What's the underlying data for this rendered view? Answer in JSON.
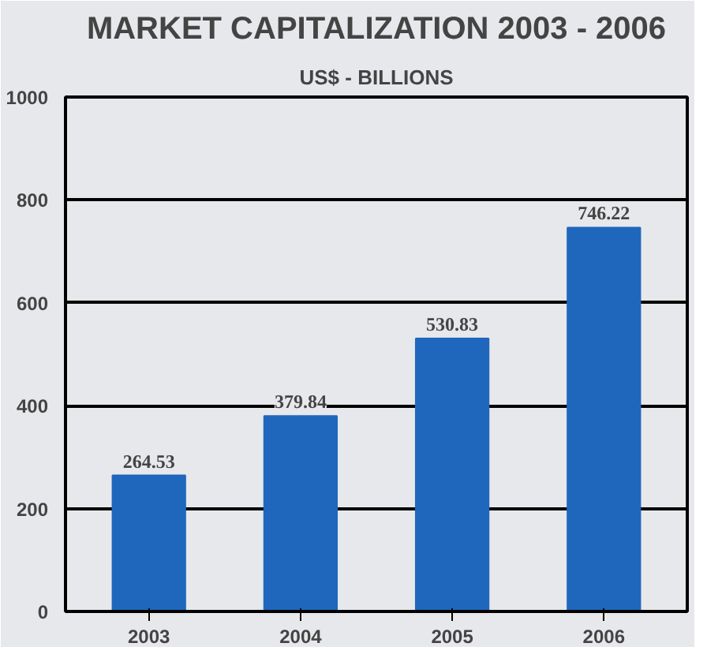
{
  "chart_data": {
    "type": "bar",
    "title": "MARKET CAPITALIZATION 2003 - 2006",
    "subtitle": "US$ - BILLIONS",
    "categories": [
      "2003",
      "2004",
      "2005",
      "2006"
    ],
    "values": [
      264.53,
      379.84,
      530.83,
      746.22
    ],
    "color": "#1f67bd",
    "ylim": [
      0,
      1000
    ],
    "yticks": [
      0,
      200,
      400,
      600,
      800,
      1000
    ],
    "grid": "y",
    "data_labels": true
  }
}
